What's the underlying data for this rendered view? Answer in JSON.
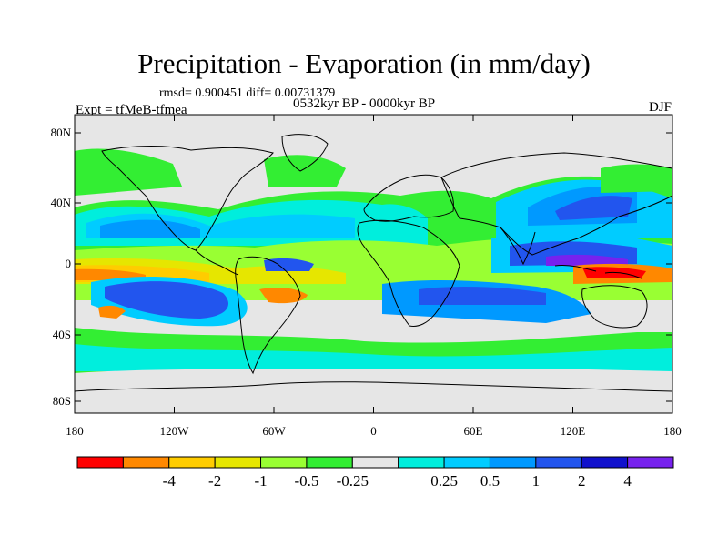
{
  "title": "Precipitation - Evaporation (in mm/day)",
  "stats": "rmsd= 0.900451 diff= 0.00731379",
  "experiment": "Expt = tfMeB-tfmea",
  "period": "0532kyr BP - 0000kyr BP",
  "season": "DJF",
  "colors": {
    "ocean_background": "#e6e6e6",
    "coastline": "#000000"
  },
  "map": {
    "lat_ticks": [
      "80N",
      "40N",
      "0",
      "40S",
      "80S"
    ],
    "lon_ticks": [
      "180",
      "120W",
      "60W",
      "0",
      "60E",
      "120E",
      "180"
    ]
  },
  "colorbar": {
    "colors": [
      "#ff0000",
      "#ff8800",
      "#ffcc00",
      "#e6e600",
      "#99ff33",
      "#33ee33",
      "#e6e6e6",
      "#00eedd",
      "#00ccff",
      "#0099ff",
      "#2255ee",
      "#1111cc",
      "#7722ee"
    ],
    "labels": [
      "-4",
      "-2",
      "-1",
      "-0.5",
      "-0.25",
      "0.25",
      "0.5",
      "1",
      "2",
      "4"
    ]
  }
}
